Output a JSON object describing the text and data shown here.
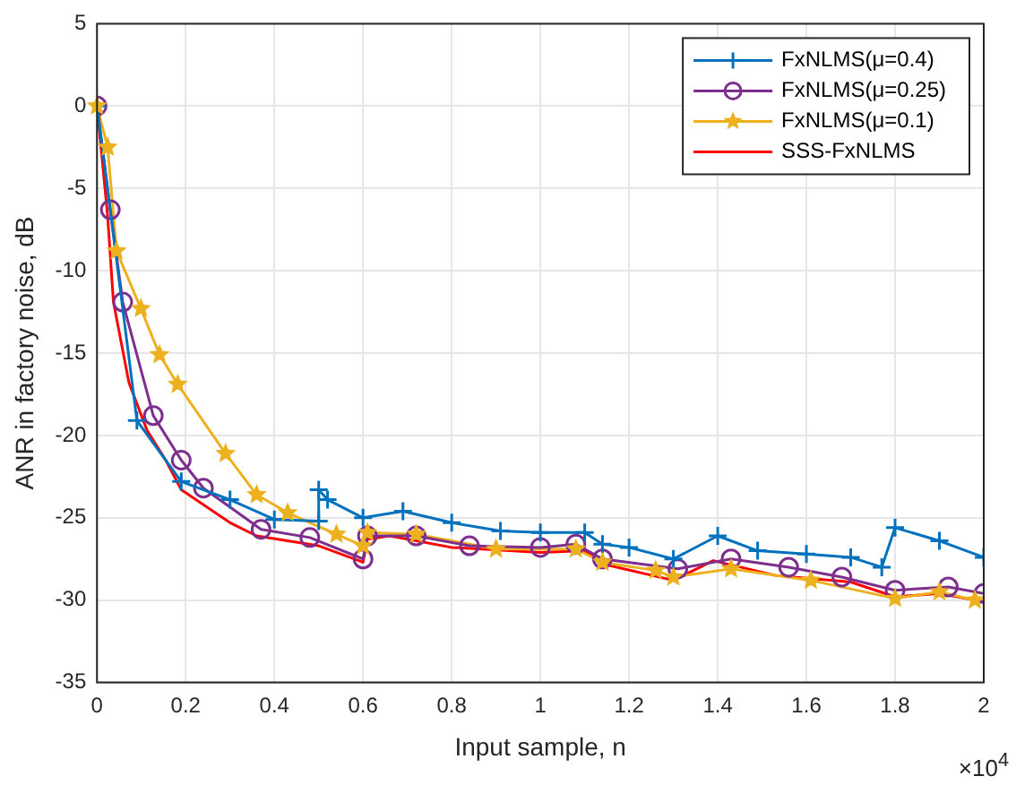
{
  "chart_data": {
    "type": "line",
    "xlabel": "Input sample, n",
    "ylabel": "ANR in factory noise, dB",
    "xlim": [
      0,
      2
    ],
    "xticks": [
      0,
      0.2,
      0.4,
      0.6,
      0.8,
      1,
      1.2,
      1.4,
      1.6,
      1.8,
      2
    ],
    "ylim": [
      -35,
      5
    ],
    "yticks": [
      -35,
      -30,
      -25,
      -20,
      -15,
      -10,
      -5,
      0,
      5
    ],
    "grid": true,
    "legend": "top right",
    "line_style": "solid",
    "annotations": [
      "×10$^{4}$"
    ],
    "series": [
      {
        "name": "FxNLMS(μ=0.4)",
        "color": "#0072bd",
        "marker": "cross",
        "x": [
          0,
          0.09,
          0.19,
          0.3,
          0.4,
          0.5,
          0.5,
          0.52,
          0.6,
          0.69,
          0.8,
          0.91,
          1,
          1.1,
          1.14,
          1.2,
          1.3,
          1.4,
          1.49,
          1.6,
          1.7,
          1.77,
          1.8,
          1.9,
          2
        ],
        "values": [
          0,
          -19.1,
          -22.8,
          -23.9,
          -25.1,
          -25.2,
          -23.3,
          -23.9,
          -25,
          -24.6,
          -25.3,
          -25.8,
          -25.9,
          -25.9,
          -26.6,
          -26.8,
          -27.5,
          -26.1,
          -27,
          -27.2,
          -27.4,
          -28,
          -25.6,
          -26.4,
          -27.4
        ]
      },
      {
        "name": "FxNLMS(μ=0.25)",
        "color": "#7e2f8e",
        "marker": "circle",
        "x": [
          0,
          0.03,
          0.058,
          0.127,
          0.19,
          0.24,
          0.37,
          0.48,
          0.6,
          0.61,
          0.72,
          0.84,
          1,
          1.08,
          1.14,
          1.31,
          1.43,
          1.56,
          1.68,
          1.8,
          1.92,
          2
        ],
        "values": [
          0,
          -6.3,
          -11.9,
          -18.8,
          -21.5,
          -23.2,
          -25.7,
          -26.2,
          -27.5,
          -26.1,
          -26.1,
          -26.7,
          -26.8,
          -26.6,
          -27.5,
          -28.1,
          -27.5,
          -28,
          -28.6,
          -29.4,
          -29.2,
          -29.6
        ]
      },
      {
        "name": "FxNLMS(μ=0.1)",
        "color": "#edb120",
        "marker": "star",
        "x": [
          0,
          0.024,
          0.044,
          0.099,
          0.141,
          0.182,
          0.29,
          0.36,
          0.43,
          0.54,
          0.6,
          0.61,
          0.72,
          0.9,
          1.08,
          1.14,
          1.26,
          1.3,
          1.43,
          1.61,
          1.8,
          1.9,
          1.98
        ],
        "values": [
          0,
          -2.5,
          -8.8,
          -12.3,
          -15.1,
          -16.9,
          -21.1,
          -23.6,
          -24.7,
          -26,
          -26.7,
          -25.9,
          -26,
          -26.9,
          -26.9,
          -27.7,
          -28.2,
          -28.6,
          -28.1,
          -28.8,
          -29.9,
          -29.5,
          -30
        ]
      },
      {
        "name": "SSS-FxNLMS",
        "color": "#ff0000",
        "marker": "none",
        "x": [
          0,
          0.024,
          0.037,
          0.072,
          0.113,
          0.155,
          0.19,
          0.3,
          0.36,
          0.5,
          0.6,
          0.61,
          0.66,
          0.8,
          1,
          1.1,
          1.14,
          1.3,
          1.39,
          1.53,
          1.7,
          1.8,
          1.9,
          2
        ],
        "values": [
          0,
          -6.7,
          -11.9,
          -16.8,
          -19.7,
          -21.5,
          -23.3,
          -25.3,
          -26.1,
          -26.7,
          -27.7,
          -26.3,
          -26.1,
          -26.8,
          -27.1,
          -27,
          -27.8,
          -28.8,
          -27.6,
          -28.5,
          -28.9,
          -29.8,
          -29.6,
          -30.1
        ]
      }
    ]
  }
}
